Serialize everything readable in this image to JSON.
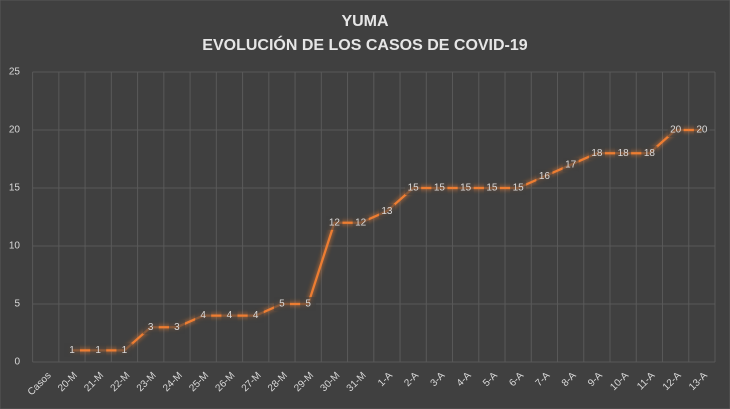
{
  "chart_data": {
    "type": "line",
    "title": "YUMA",
    "subtitle": "EVOLUCIÓN DE LOS CASOS DE COVID-19",
    "categories": [
      "Casos",
      "20-M",
      "21-M",
      "22-M",
      "23-M",
      "24-M",
      "25-M",
      "26-M",
      "27-M",
      "28-M",
      "29-M",
      "30-M",
      "31-M",
      "1-A",
      "2-A",
      "3-A",
      "4-A",
      "5-A",
      "6-A",
      "7-A",
      "8-A",
      "9-A",
      "10-A",
      "11-A",
      "12-A",
      "13-A"
    ],
    "values": [
      null,
      1,
      1,
      1,
      3,
      3,
      4,
      4,
      4,
      5,
      5,
      12,
      12,
      13,
      15,
      15,
      15,
      15,
      15,
      16,
      17,
      18,
      18,
      18,
      20,
      20
    ],
    "color": "#ed7d31",
    "ylim": [
      0,
      25
    ],
    "yticks": [
      0,
      5,
      10,
      15,
      20,
      25
    ],
    "grid": true
  }
}
